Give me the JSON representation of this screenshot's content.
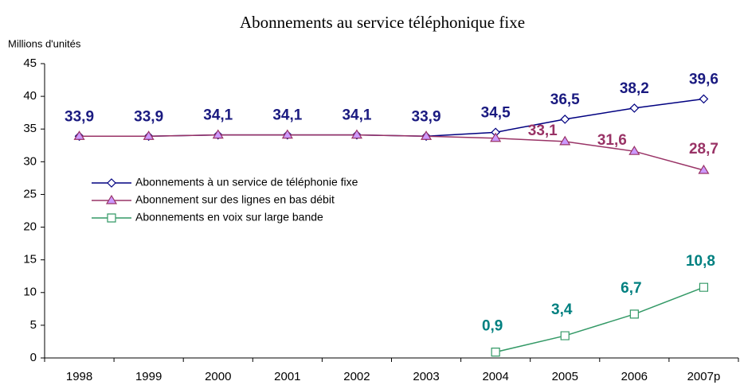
{
  "chart_data": {
    "type": "line",
    "title": "Abonnements au service téléphonique fixe",
    "y_axis_label": "Millions d'unités",
    "categories": [
      "1998",
      "1999",
      "2000",
      "2001",
      "2002",
      "2003",
      "2004",
      "2005",
      "2006",
      "2007p"
    ],
    "series": [
      {
        "name": "Abonnements à un service de téléphonie fixe",
        "color": "#000080",
        "label_color": "#1a1a80",
        "marker_fill": "#ffffff",
        "marker": "diamond",
        "values": [
          33.9,
          33.9,
          34.1,
          34.1,
          34.1,
          33.9,
          34.5,
          36.5,
          38.2,
          39.6
        ],
        "value_labels": [
          "33,9",
          "33,9",
          "34,1",
          "34,1",
          "34,1",
          "33,9",
          "34,5",
          "36,5",
          "38,2",
          "39,6"
        ]
      },
      {
        "name": "Abonnement sur des lignes en bas débit",
        "color": "#993366",
        "label_color": "#993366",
        "marker_fill": "#cc99ff",
        "marker": "triangle",
        "values": [
          33.9,
          33.9,
          34.1,
          34.1,
          34.1,
          33.9,
          33.6,
          33.1,
          31.6,
          28.7
        ],
        "value_labels": [
          null,
          null,
          null,
          null,
          null,
          null,
          null,
          "33,1",
          "31,6",
          "28,7"
        ]
      },
      {
        "name": "Abonnements en voix sur large bande",
        "color": "#339966",
        "label_color": "#008080",
        "marker_fill": "#ffffff",
        "marker": "square",
        "values": [
          null,
          null,
          null,
          null,
          null,
          null,
          0.9,
          3.4,
          6.7,
          10.8
        ],
        "value_labels": [
          null,
          null,
          null,
          null,
          null,
          null,
          "0,9",
          "3,4",
          "6,7",
          "10,8"
        ]
      }
    ],
    "ylim": [
      0,
      45
    ],
    "yticks": [
      0,
      5,
      10,
      15,
      20,
      25,
      30,
      35,
      40,
      45
    ],
    "grid": false,
    "legend": "center-left"
  }
}
